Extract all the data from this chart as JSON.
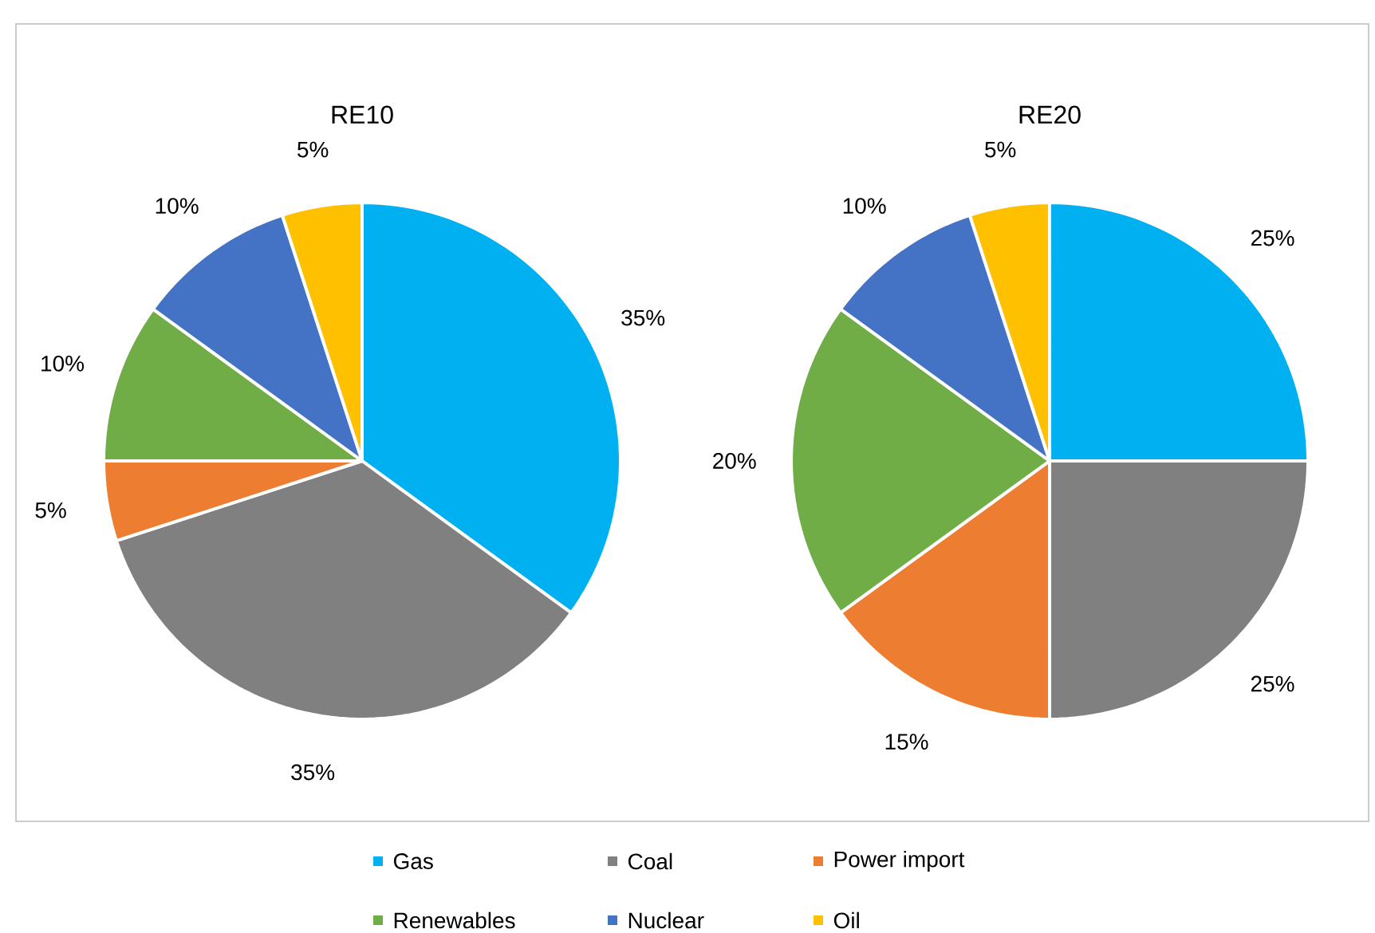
{
  "chart_data": [
    {
      "type": "pie",
      "title": "RE10",
      "categories": [
        "Gas",
        "Coal",
        "Power import",
        "Renewables",
        "Nuclear",
        "Oil"
      ],
      "values": [
        35,
        35,
        5,
        10,
        10,
        5
      ],
      "value_labels": [
        "35%",
        "35%",
        "5%",
        "10%",
        "10%",
        "5%"
      ],
      "colors": [
        "#00b0f0",
        "#808080",
        "#ed7d31",
        "#70ad47",
        "#4472c4",
        "#ffc000"
      ],
      "legend": "bottom"
    },
    {
      "type": "pie",
      "title": "RE20",
      "categories": [
        null,
        null,
        null,
        null,
        null,
        null
      ],
      "values": [
        25,
        25,
        15,
        20,
        10,
        5
      ],
      "value_labels": [
        "25%",
        "25%",
        "15%",
        "20%",
        "10%",
        "5%"
      ],
      "colors": [
        "#00b0f0",
        "#808080",
        "#ed7d31",
        "#70ad47",
        "#4472c4",
        "#ffc000"
      ]
    }
  ]
}
